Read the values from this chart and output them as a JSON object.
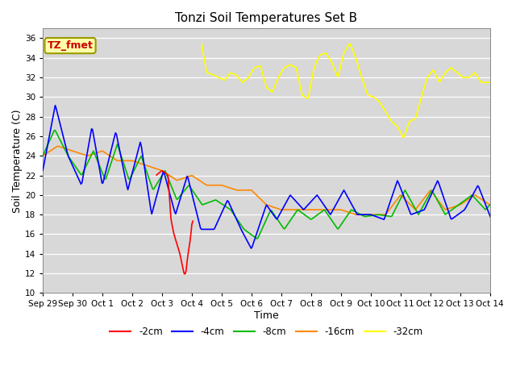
{
  "title": "Tonzi Soil Temperatures Set B",
  "xlabel": "Time",
  "ylabel": "Soil Temperature (C)",
  "ylim": [
    10,
    37
  ],
  "yticks": [
    10,
    12,
    14,
    16,
    18,
    20,
    22,
    24,
    26,
    28,
    30,
    32,
    34,
    36
  ],
  "annotation_text": "TZ_fmet",
  "annotation_color": "#cc0000",
  "annotation_bg": "#ffffaa",
  "annotation_border": "#999900",
  "fig_bg": "#ffffff",
  "plot_bg": "#d8d8d8",
  "grid_color": "#ffffff",
  "series": {
    "m2cm": {
      "label": "-2cm",
      "color": "#ff0000",
      "lw": 1.2
    },
    "m4cm": {
      "label": "-4cm",
      "color": "#0000ff",
      "lw": 1.2
    },
    "m8cm": {
      "label": "-8cm",
      "color": "#00bb00",
      "lw": 1.2
    },
    "m16cm": {
      "label": "-16cm",
      "color": "#ff8800",
      "lw": 1.2
    },
    "m32cm": {
      "label": "-32cm",
      "color": "#ffff00",
      "lw": 1.2
    }
  },
  "x_labels": [
    "Sep 29",
    "Sep 30",
    "Oct 1",
    "Oct 2",
    "Oct 3",
    "Oct 4",
    "Oct 5",
    "Oct 6",
    "Oct 7",
    "Oct 8",
    "Oct 9",
    "Oct 10",
    "Oct 11",
    "Oct 12",
    "Oct 13",
    "Oct 14"
  ],
  "blue_kp_t": [
    0,
    0.42,
    0.85,
    1.3,
    1.65,
    2.0,
    2.45,
    2.85,
    3.28,
    3.65,
    4.05,
    4.45,
    4.85,
    5.3,
    5.75,
    6.2,
    6.65,
    7.0,
    7.5,
    7.85,
    8.3,
    8.75,
    9.2,
    9.65,
    10.1,
    10.55,
    11.0,
    11.45,
    11.9,
    12.35,
    12.8,
    13.25,
    13.7,
    14.15,
    14.6,
    15.05,
    15.5,
    15.95,
    16.0
  ],
  "blue_kp_v": [
    22.5,
    29.2,
    24.0,
    21.0,
    27.0,
    21.0,
    26.5,
    20.5,
    25.5,
    18.0,
    22.5,
    18.0,
    22.0,
    16.5,
    16.5,
    19.5,
    16.5,
    14.5,
    19.0,
    17.5,
    20.0,
    18.5,
    20.0,
    18.0,
    20.5,
    18.0,
    18.0,
    17.5,
    21.5,
    18.0,
    18.5,
    21.5,
    17.5,
    18.5,
    21.0,
    17.5,
    21.0,
    18.5,
    18.5
  ],
  "green_kp_t": [
    0,
    0.4,
    0.85,
    1.3,
    1.7,
    2.1,
    2.5,
    2.9,
    3.3,
    3.7,
    4.1,
    4.5,
    4.9,
    5.35,
    5.8,
    6.3,
    6.75,
    7.2,
    7.65,
    8.1,
    8.55,
    9.0,
    9.45,
    9.9,
    10.35,
    10.8,
    11.25,
    11.7,
    12.15,
    12.6,
    13.05,
    13.5,
    13.95,
    14.4,
    14.85,
    15.3,
    15.75,
    16.0
  ],
  "green_kp_v": [
    24.0,
    26.7,
    24.0,
    22.0,
    24.5,
    21.5,
    25.2,
    21.5,
    24.0,
    20.5,
    22.5,
    19.5,
    21.0,
    19.0,
    19.5,
    18.5,
    16.5,
    15.5,
    18.5,
    16.5,
    18.5,
    17.5,
    18.5,
    16.5,
    18.5,
    17.8,
    18.0,
    17.8,
    20.5,
    18.0,
    20.5,
    18.0,
    19.0,
    20.0,
    18.5,
    20.0,
    18.5,
    18.5
  ],
  "orange_kp_t": [
    0,
    0.5,
    1.0,
    1.5,
    2.0,
    2.5,
    3.0,
    3.5,
    4.0,
    4.5,
    5.0,
    5.5,
    6.0,
    6.5,
    7.0,
    7.5,
    8.0,
    8.5,
    9.0,
    9.5,
    10.0,
    10.5,
    11.0,
    11.5,
    12.0,
    12.5,
    13.0,
    13.5,
    14.0,
    14.5,
    15.0,
    15.5,
    16.0
  ],
  "orange_kp_v": [
    24.0,
    25.0,
    24.5,
    24.0,
    24.5,
    23.5,
    23.5,
    23.0,
    22.5,
    21.5,
    22.0,
    21.0,
    21.0,
    20.5,
    20.5,
    19.0,
    18.5,
    18.5,
    18.5,
    18.5,
    18.5,
    18.0,
    18.0,
    18.0,
    20.0,
    18.5,
    20.5,
    18.5,
    19.0,
    20.0,
    19.0,
    20.0,
    19.0
  ],
  "red_kp_t": [
    3.8,
    4.0,
    4.1,
    4.2,
    4.3,
    4.4,
    4.5,
    4.6,
    4.7,
    4.75,
    4.8,
    4.85,
    4.9,
    4.95,
    5.0,
    5.05
  ],
  "red_kp_v": [
    22.0,
    22.5,
    22.3,
    22.0,
    17.5,
    16.0,
    15.0,
    14.0,
    12.5,
    11.9,
    12.0,
    13.5,
    14.5,
    15.5,
    17.0,
    17.5
  ],
  "yellow_kp_t": [
    5.3,
    5.32,
    5.5,
    5.7,
    5.9,
    6.1,
    6.3,
    6.5,
    6.7,
    6.9,
    7.1,
    7.3,
    7.5,
    7.7,
    7.9,
    8.1,
    8.3,
    8.5,
    8.7,
    8.9,
    9.1,
    9.3,
    9.5,
    9.7,
    9.9,
    10.1,
    10.3,
    10.5,
    10.7,
    10.9,
    11.1,
    11.3,
    11.5,
    11.7,
    11.9,
    12.1,
    12.3,
    12.5,
    12.7,
    12.9,
    13.1,
    13.3,
    13.5,
    13.7,
    13.9,
    14.1,
    14.3,
    14.5,
    14.7,
    14.9,
    15.1,
    15.3,
    15.5,
    15.7,
    15.9,
    16.0
  ],
  "yellow_kp_v": [
    25.5,
    35.5,
    32.5,
    32.3,
    32.0,
    31.7,
    32.5,
    32.2,
    31.5,
    32.0,
    33.0,
    33.2,
    31.0,
    30.5,
    32.0,
    33.0,
    33.3,
    33.0,
    30.2,
    29.8,
    33.0,
    34.3,
    34.5,
    33.5,
    32.0,
    34.5,
    35.5,
    34.0,
    32.0,
    30.2,
    30.0,
    29.5,
    28.5,
    27.5,
    27.0,
    25.8,
    27.5,
    27.8,
    30.0,
    32.0,
    32.8,
    31.5,
    32.5,
    33.0,
    32.5,
    32.0,
    32.0,
    32.5,
    31.5,
    31.5,
    31.5,
    32.5,
    33.0,
    32.0,
    31.5,
    31.5
  ]
}
